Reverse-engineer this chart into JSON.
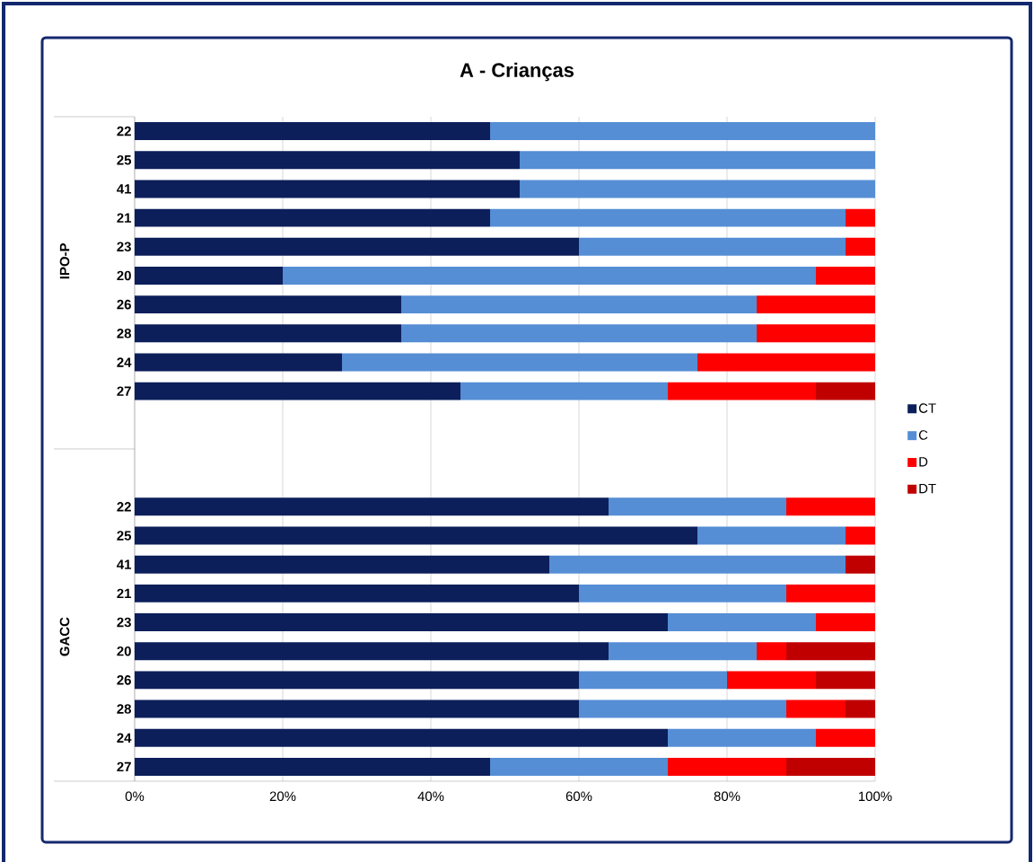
{
  "chart_data": {
    "type": "bar",
    "orientation": "horizontal",
    "stacked": true,
    "title": "A - Crianças",
    "categories": [
      "22",
      "25",
      "41",
      "21",
      "23",
      "20",
      "26",
      "28",
      "24",
      "27",
      null,
      null,
      null,
      "22",
      "25",
      "41",
      "21",
      "23",
      "20",
      "26",
      "28",
      "24",
      "27"
    ],
    "series": [
      {
        "name": "CT",
        "color": "#0c1f5b",
        "values": [
          48,
          52,
          52,
          48,
          60,
          20,
          36,
          36,
          28,
          44,
          null,
          null,
          null,
          64,
          76,
          56,
          60,
          72,
          64,
          60,
          60,
          72,
          48
        ]
      },
      {
        "name": "C",
        "color": "#558ed5",
        "values": [
          52,
          48,
          48,
          48,
          36,
          72,
          48,
          48,
          48,
          28,
          null,
          null,
          null,
          24,
          20,
          40,
          28,
          20,
          20,
          20,
          28,
          20,
          24
        ]
      },
      {
        "name": "D",
        "color": "#ff0000",
        "values": [
          0,
          0,
          0,
          4,
          4,
          8,
          16,
          16,
          24,
          20,
          null,
          null,
          null,
          12,
          4,
          0,
          12,
          8,
          4,
          12,
          8,
          8,
          16
        ]
      },
      {
        "name": "DT",
        "color": "#c00000",
        "values": [
          0,
          0,
          0,
          0,
          0,
          0,
          0,
          0,
          0,
          8,
          null,
          null,
          null,
          0,
          0,
          4,
          0,
          0,
          12,
          8,
          4,
          0,
          12
        ]
      }
    ],
    "xlim": [
      0,
      100
    ],
    "xticks": [
      {
        "value": 0,
        "label": "0%"
      },
      {
        "value": 20,
        "label": "20%"
      },
      {
        "value": 40,
        "label": "40%"
      },
      {
        "value": 60,
        "label": "60%"
      },
      {
        "value": 80,
        "label": "80%"
      },
      {
        "value": 100,
        "label": "100%"
      }
    ],
    "grid": "x",
    "legend": "right",
    "annotations": [
      "IPO-P",
      "GACC"
    ]
  }
}
